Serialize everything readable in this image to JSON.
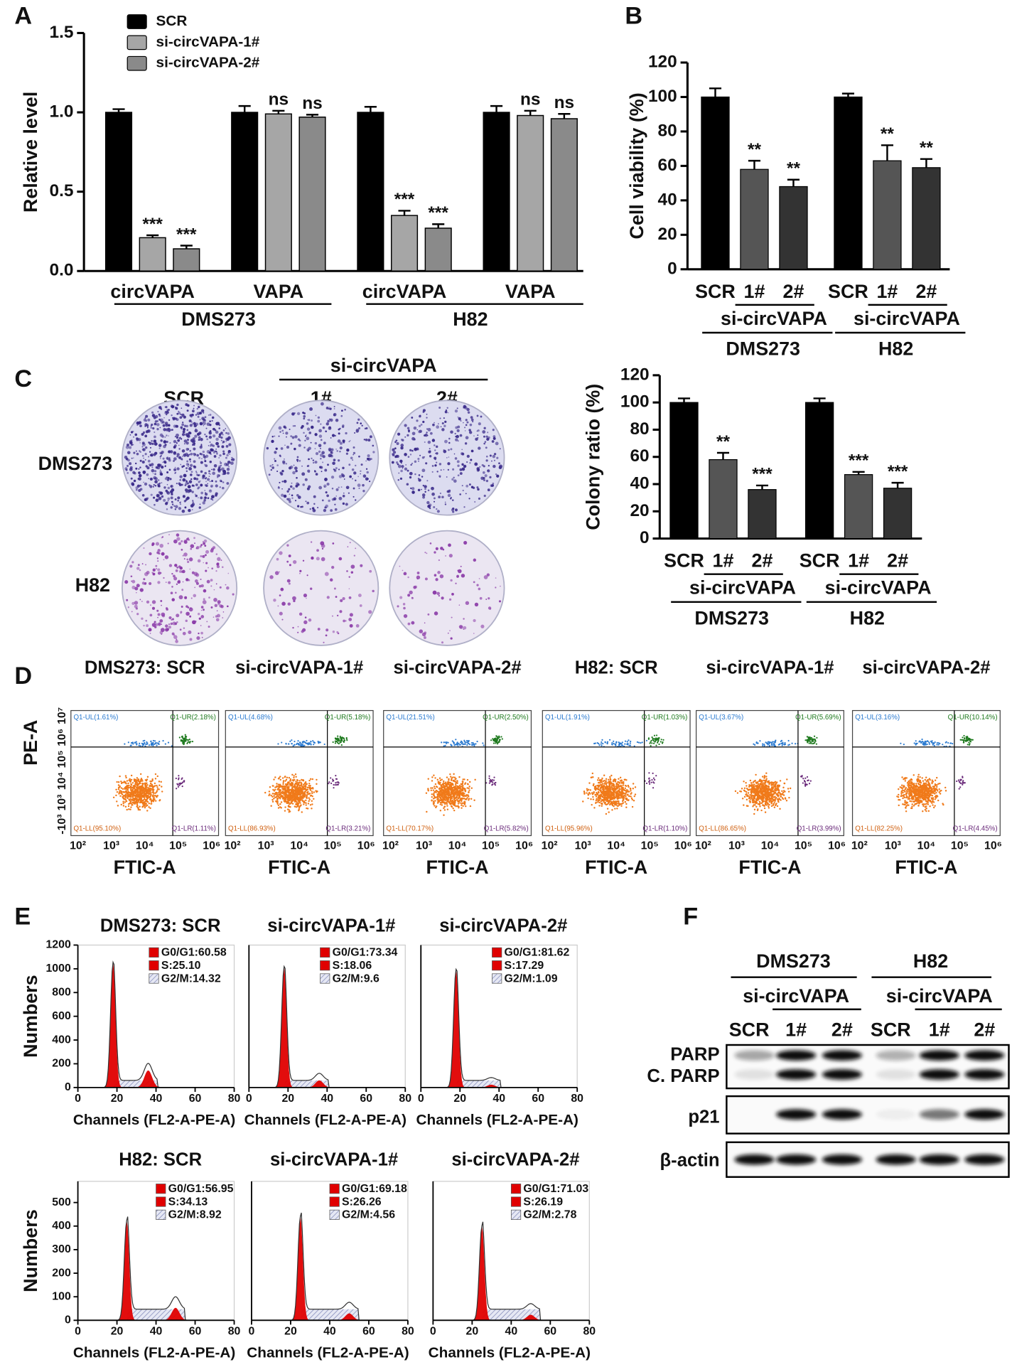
{
  "panel_labels": [
    "A",
    "B",
    "C",
    "D",
    "E",
    "F"
  ],
  "chart_data": [
    {
      "type": "bar",
      "ylabel": "Relative level",
      "categories": [
        "circVAPA",
        "VAPA",
        "circVAPA",
        "VAPA"
      ],
      "group_labels": [
        "DMS273",
        "H82"
      ],
      "series": [
        {
          "name": "SCR",
          "color": "#000000",
          "values": [
            1.0,
            1.0,
            1.0,
            1.0
          ],
          "errors": [
            0.02,
            0.04,
            0.035,
            0.04
          ]
        },
        {
          "name": "si-circVAPA-1#",
          "color": "#a6a6a6",
          "values": [
            0.21,
            0.99,
            0.35,
            0.98
          ],
          "errors": [
            0.015,
            0.02,
            0.03,
            0.03
          ],
          "significance": [
            "***",
            "ns",
            "***",
            "ns"
          ]
        },
        {
          "name": "si-circVAPA-2#",
          "color": "#8a8a8a",
          "values": [
            0.14,
            0.97,
            0.27,
            0.96
          ],
          "errors": [
            0.02,
            0.015,
            0.025,
            0.03
          ],
          "significance": [
            "***",
            "ns",
            "***",
            "ns"
          ]
        }
      ],
      "ylim": [
        0,
        1.5
      ],
      "yticks": [
        {
          "value": 0,
          "label": "0.0"
        },
        {
          "value": 0.5,
          "label": "0.5"
        },
        {
          "value": 1,
          "label": "1.0"
        },
        {
          "value": 1.5,
          "label": "1.5"
        }
      ],
      "legend": "upper left"
    },
    {
      "type": "bar",
      "ylabel": "Cell viability (%)",
      "categories": [
        "SCR",
        "1#",
        "2#",
        "SCR",
        "1#",
        "2#"
      ],
      "subgroup_labels": [
        "si-circVAPA",
        "si-circVAPA"
      ],
      "group_labels": [
        "DMS273",
        "H82"
      ],
      "values": [
        100,
        58,
        48,
        100,
        63,
        59
      ],
      "errors": [
        5,
        5,
        4,
        2,
        9,
        5
      ],
      "significance": [
        null,
        "**",
        "**",
        null,
        "**",
        "**"
      ],
      "colors": [
        "#000000",
        "#555555",
        "#333333",
        "#000000",
        "#555555",
        "#333333"
      ],
      "ylim": [
        0,
        120
      ],
      "yticks": [
        0,
        20,
        40,
        60,
        80,
        100,
        120
      ]
    },
    {
      "type": "bar",
      "ylabel": "Colony ratio (%)",
      "categories": [
        "SCR",
        "1#",
        "2#",
        "SCR",
        "1#",
        "2#"
      ],
      "subgroup_labels": [
        "si-circVAPA",
        "si-circVAPA"
      ],
      "group_labels": [
        "DMS273",
        "H82"
      ],
      "values": [
        100,
        58,
        36,
        100,
        47,
        37
      ],
      "errors": [
        3,
        5,
        3,
        3,
        2,
        4
      ],
      "significance": [
        null,
        "**",
        "***",
        null,
        "***",
        "***"
      ],
      "colors": [
        "#000000",
        "#555555",
        "#333333",
        "#000000",
        "#555555",
        "#333333"
      ],
      "ylim": [
        0,
        120
      ],
      "yticks": [
        0,
        20,
        40,
        60,
        80,
        100,
        120
      ]
    }
  ],
  "colony": {
    "header": "si-circVAPA",
    "columns": [
      "SCR",
      "1#",
      "2#"
    ],
    "rows": [
      "DMS273",
      "H82"
    ]
  },
  "flow": {
    "ylabel": "PE-A",
    "xlabel": "FTIC-A",
    "xticks": [
      "10²",
      "10³",
      "10⁴",
      "10⁵",
      "10⁶"
    ],
    "yticks": [
      "10⁷",
      "10⁶",
      "10⁵",
      "10⁴",
      "10³",
      "-10³"
    ],
    "plots": [
      {
        "title": "DMS273: SCR",
        "UL": "Q1-UL(1.61%)",
        "UR": "Q1-UR(2.18%)",
        "LL": "Q1-LL(95.10%)",
        "LR": "Q1-LR(1.11%)"
      },
      {
        "title": "si-circVAPA-1#",
        "UL": "Q1-UL(4.68%)",
        "UR": "Q1-UR(5.18%)",
        "LL": "Q1-LL(86.93%)",
        "LR": "Q1-LR(3.21%)"
      },
      {
        "title": "si-circVAPA-2#",
        "UL": "Q1-UL(21.51%)",
        "UR": "Q1-UR(2.50%)",
        "LL": "Q1-LL(70.17%)",
        "LR": "Q1-LR(5.82%)"
      },
      {
        "title": "H82: SCR",
        "UL": "Q1-UL(1.91%)",
        "UR": "Q1-UR(1.03%)",
        "LL": "Q1-LL(95.96%)",
        "LR": "Q1-LR(1.10%)"
      },
      {
        "title": "si-circVAPA-1#",
        "UL": "Q1-UL(3.67%)",
        "UR": "Q1-UR(5.69%)",
        "LL": "Q1-LL(86.65%)",
        "LR": "Q1-LR(3.99%)"
      },
      {
        "title": "si-circVAPA-2#",
        "UL": "Q1-UL(3.16%)",
        "UR": "Q1-UR(10.14%)",
        "LL": "Q1-LL(82.25%)",
        "LR": "Q1-LR(4.45%)"
      }
    ]
  },
  "cell_cycle": {
    "ylabel": "Numbers",
    "xlabel": "Channels (FL2-A-PE-A)",
    "xlim": [
      0,
      80
    ],
    "xticks": [
      0,
      20,
      40,
      60,
      80
    ],
    "rows": [
      {
        "ylim": [
          0,
          1200
        ],
        "yticks": [
          0,
          200,
          400,
          600,
          800,
          1000,
          1200
        ],
        "plots": [
          {
            "title": "DMS273: SCR",
            "g1": "G0/G1:60.58",
            "s": "S:25.10",
            "g2": "G2/M:14.32"
          },
          {
            "title": "si-circVAPA-1#",
            "g1": "G0/G1:73.34",
            "s": "S:18.06",
            "g2": "G2/M:9.6"
          },
          {
            "title": "si-circVAPA-2#",
            "g1": "G0/G1:81.62",
            "s": "S:17.29",
            "g2": "G2/M:1.09"
          }
        ]
      },
      {
        "ylim": [
          0,
          590
        ],
        "yticks": [
          0,
          100,
          200,
          300,
          400,
          500
        ],
        "plots": [
          {
            "title": "H82: SCR",
            "g1": "G0/G1:56.95",
            "s": "S:34.13",
            "g2": "G2/M:8.92"
          },
          {
            "title": "si-circVAPA-1#",
            "g1": "G0/G1:69.18",
            "s": "S:26.26",
            "g2": "G2/M:4.56"
          },
          {
            "title": "si-circVAPA-2#",
            "g1": "G0/G1:71.03",
            "s": "S:26.19",
            "g2": "G2/M:2.78"
          }
        ]
      }
    ]
  },
  "western": {
    "groups": [
      "DMS273",
      "H82"
    ],
    "subheader": "si-circVAPA",
    "lanes": [
      "SCR",
      "1#",
      "2#",
      "SCR",
      "1#",
      "2#"
    ],
    "rows": [
      "PARP",
      "C. PARP",
      "p21",
      "β-actin"
    ]
  }
}
